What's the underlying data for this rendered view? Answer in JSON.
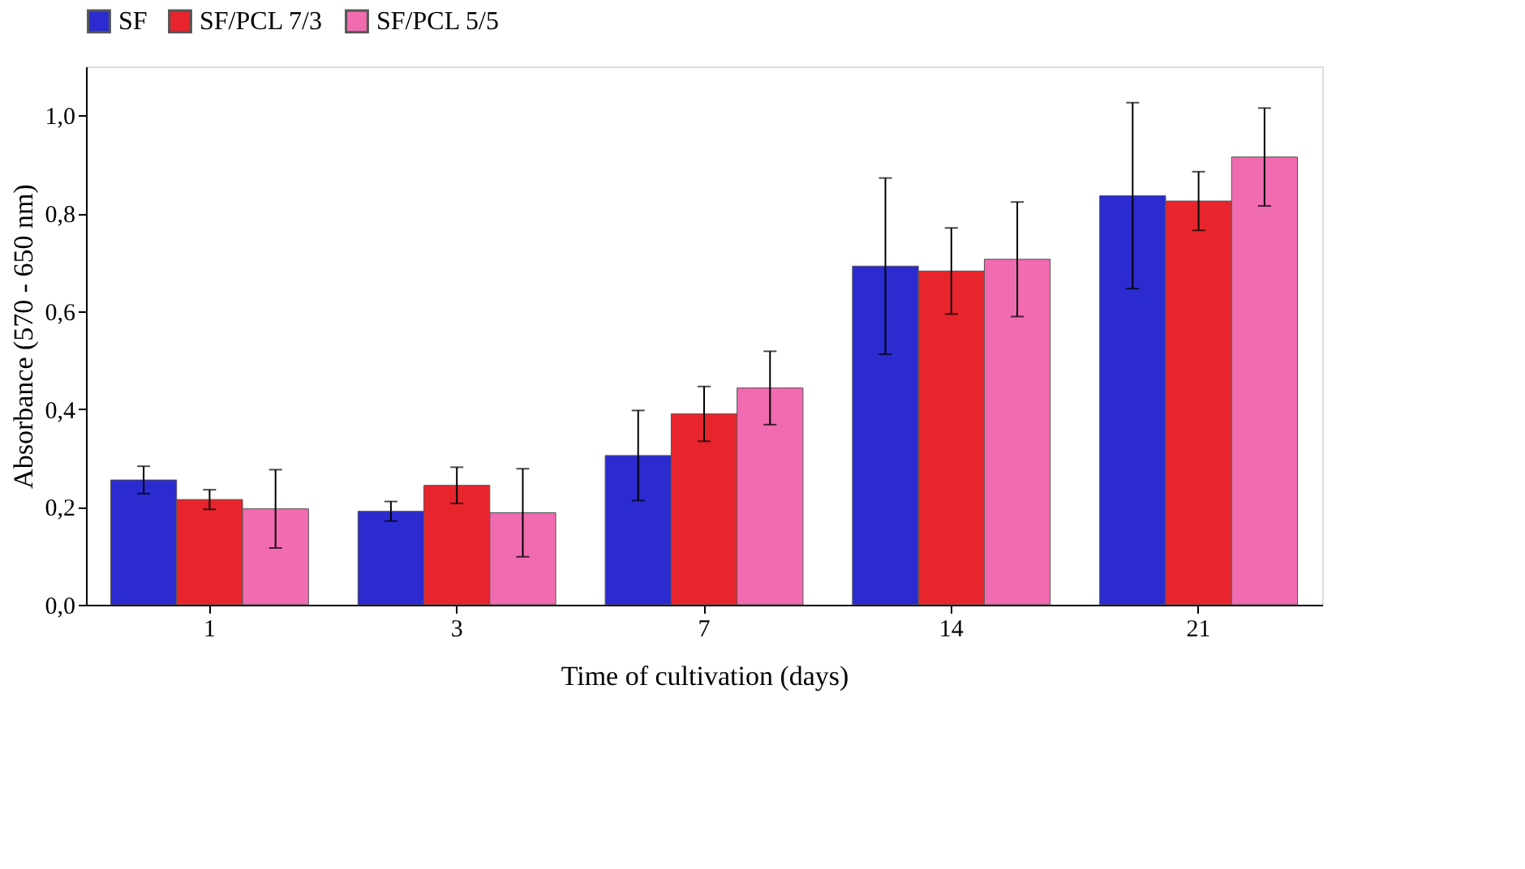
{
  "chart_data": {
    "type": "bar",
    "xlabel": "Time of cultivation (days)",
    "ylabel": "Absorbance (570 - 650 nm)",
    "categories": [
      "1",
      "3",
      "7",
      "14",
      "21"
    ],
    "series": [
      {
        "name": "SF",
        "color": "#2b2bd0",
        "values": [
          0.255,
          0.191,
          0.305,
          0.692,
          0.836
        ],
        "errors": [
          0.028,
          0.02,
          0.092,
          0.18,
          0.19
        ]
      },
      {
        "name": "SF/PCL 7/3",
        "color": "#e8252d",
        "values": [
          0.215,
          0.244,
          0.39,
          0.682,
          0.825
        ],
        "errors": [
          0.02,
          0.037,
          0.056,
          0.088,
          0.06
        ]
      },
      {
        "name": "SF/PCL 5/5",
        "color": "#f06bb0",
        "values": [
          0.196,
          0.188,
          0.443,
          0.706,
          0.915
        ],
        "errors": [
          0.08,
          0.09,
          0.075,
          0.117,
          0.1
        ]
      }
    ],
    "ylim": [
      0,
      1.1
    ],
    "yticks": [
      {
        "value": 0,
        "label": "0,0"
      },
      {
        "value": 0.2,
        "label": "0,2"
      },
      {
        "value": 0.4,
        "label": "0,4"
      },
      {
        "value": 0.6,
        "label": "0,6"
      },
      {
        "value": 0.8,
        "label": "0,8"
      },
      {
        "value": 1.0,
        "label": "1,0"
      }
    ],
    "legend": "top",
    "grid": false
  }
}
